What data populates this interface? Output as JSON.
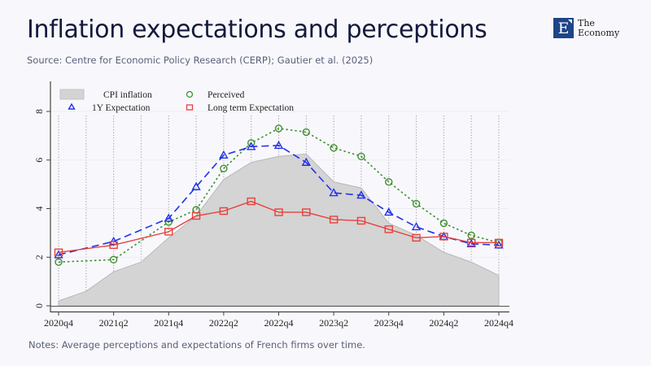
{
  "header": {
    "title": "Inflation expectations and perceptions",
    "source": "Source: Centre for Economic Policy Research (CERP); Gautier et al. (2025)",
    "notes": "Notes: Average perceptions and expectations of French firms over time."
  },
  "logo": {
    "letter": "E",
    "line1": "The",
    "line2": "Economy",
    "color": "#1d4587"
  },
  "chart_data": {
    "type": "line",
    "title": "",
    "xlabel": "",
    "ylabel": "",
    "ylim": [
      0,
      8
    ],
    "yticks": [
      "0",
      "2",
      "4",
      "6",
      "8"
    ],
    "x": [
      "2020q4",
      "2021q1",
      "2021q2",
      "2021q3",
      "2021q4",
      "2022q1",
      "2022q2",
      "2022q3",
      "2022q4",
      "2023q1",
      "2023q2",
      "2023q3",
      "2023q4",
      "2024q1",
      "2024q2",
      "2024q3",
      "2024q4"
    ],
    "xtick_labels": [
      "2020q4",
      "2021q2",
      "2021q4",
      "2022q2",
      "2022q4",
      "2023q2",
      "2023q4",
      "2024q2",
      "2024q4"
    ],
    "grid": "vertical dotted at each quarter",
    "legend_position": "top-left",
    "series": [
      {
        "name": "CPI inflation",
        "kind": "area",
        "color": "#d4d4d4",
        "values": [
          0.2,
          0.6,
          1.4,
          1.8,
          2.8,
          3.7,
          5.2,
          5.9,
          6.15,
          6.25,
          5.1,
          4.85,
          3.4,
          2.9,
          2.2,
          1.8,
          1.25
        ]
      },
      {
        "name": "Perceived",
        "kind": "line-circle",
        "color": "#3f8f2f",
        "values": [
          1.8,
          null,
          1.9,
          null,
          3.45,
          3.95,
          5.65,
          6.7,
          7.3,
          7.15,
          6.5,
          6.15,
          5.1,
          4.2,
          3.4,
          2.9,
          2.6
        ]
      },
      {
        "name": "1Y Expectation",
        "kind": "line-triangle",
        "color": "#2332e8",
        "values": [
          2.1,
          null,
          2.65,
          null,
          3.6,
          4.9,
          6.2,
          6.55,
          6.6,
          5.9,
          4.65,
          4.55,
          3.85,
          3.25,
          2.85,
          2.55,
          2.5
        ]
      },
      {
        "name": "Long term Expectation",
        "kind": "line-square",
        "color": "#e8413b",
        "values": [
          2.2,
          null,
          2.5,
          null,
          3.05,
          3.7,
          3.9,
          4.3,
          3.85,
          3.85,
          3.55,
          3.5,
          3.15,
          2.8,
          2.85,
          2.6,
          2.6
        ]
      }
    ]
  }
}
